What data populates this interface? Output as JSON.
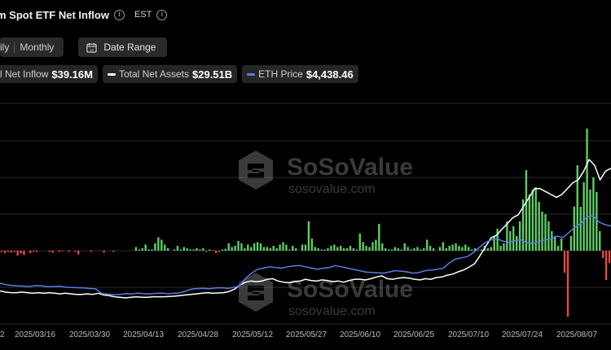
{
  "header": {
    "title": "m Spot ETF Net Inflow",
    "timezone": "EST"
  },
  "controls": {
    "period_partial": "ily",
    "period_monthly": "Monthly",
    "date_range_label": "Date Range"
  },
  "legend": {
    "inflow_label": "l Net Inflow",
    "inflow_value": "$39.16M",
    "assets_label": "Total Net Assets",
    "assets_value": "$29.51B",
    "price_label": "ETH Price",
    "price_value": "$4,438.46"
  },
  "watermark": {
    "brand": "SoSoValue",
    "domain": "sosovalue.com"
  },
  "colors": {
    "inflow_positive": "#5fd068",
    "inflow_negative": "#e8473f",
    "assets_line": "#ffffff",
    "price_line": "#5b7be6",
    "grid": "#2b2b2b"
  },
  "chart_data": {
    "type": "bar",
    "x_tick_labels": [
      "2",
      "2025/03/16",
      "2025/03/30",
      "2025/04/13",
      "2025/04/28",
      "2025/05/12",
      "2025/05/27",
      "2025/06/10",
      "2025/06/25",
      "2025/07/10",
      "2025/07/24",
      "2025/08/07"
    ],
    "grid": true,
    "series": [
      {
        "name": "Total Net Inflow",
        "kind": "bar",
        "values": [
          -0.05,
          -0.1,
          -0.05,
          -0.08,
          -0.05,
          -0.2,
          -0.12,
          -0.18,
          0,
          -0.1,
          -0.05,
          -0.05,
          0,
          0,
          0,
          -0.05,
          -0.08,
          0,
          -0.05,
          -0.03,
          0,
          -0.05,
          0,
          -0.05,
          -0.15,
          0,
          0,
          0,
          -0.05,
          0,
          0,
          0,
          -0.08,
          0,
          0,
          -0.05,
          0,
          0,
          0,
          0,
          0,
          0,
          0.15,
          0.05,
          0.1,
          0.25,
          0.05,
          0.05,
          0.3,
          0.55,
          0.45,
          0.25,
          0.1,
          0,
          0.05,
          0.2,
          0.05,
          0.15,
          0.1,
          0.05,
          0.05,
          0.1,
          0.05,
          0.1,
          -0.05,
          0.05,
          0.02,
          -0.1,
          -0.05,
          0.05,
          0.08,
          0.3,
          0.15,
          0.2,
          0.4,
          0.3,
          0.1,
          0.25,
          0.15,
          0.3,
          0.35,
          0.3,
          0.15,
          0.15,
          0.1,
          0.2,
          0.1,
          0.25,
          0.35,
          0.25,
          0.05,
          0.2,
          0.1,
          0,
          0.25,
          0.25,
          1.2,
          0.5,
          0.15,
          0.1,
          0.05,
          0.05,
          0.1,
          0.2,
          0.25,
          0.15,
          0.2,
          0.1,
          0.1,
          0.2,
          0.1,
          0.05,
          0.7,
          0.35,
          0.2,
          0.15,
          0.35,
          0.45,
          1.1,
          0.3,
          0.1,
          0.05,
          0.05,
          0.15,
          0.1,
          0.05,
          0.3,
          0.15,
          0.05,
          0.1,
          0.15,
          0.05,
          0.1,
          0.45,
          0.2,
          0.1,
          0,
          0.15,
          0.35,
          0.1,
          0.2,
          0.25,
          0.3,
          0.2,
          0.15,
          0.25,
          0.15,
          0.05,
          0.1,
          0.02,
          0.05,
          0.2,
          0.1,
          0.15,
          0.6,
          0.9,
          0.2,
          0.3,
          1.2,
          0.8,
          1.0,
          0.6,
          1.2,
          2.1,
          3.3,
          2.3,
          2.5,
          2.6,
          2.0,
          1.6,
          1.5,
          1.2,
          0.8,
          0.6,
          0.2,
          0.5,
          -0.9,
          -2.7,
          0.6,
          1.8,
          3.5,
          1.8,
          2.8,
          5.0,
          2.5,
          3.0,
          2.4,
          0.8,
          -0.3,
          -1.2,
          -0.5
        ]
      },
      {
        "name": "Total Net Assets",
        "kind": "line",
        "values": [
          7.9,
          7.7,
          7.6,
          7.6,
          7.7,
          7.6,
          7.5,
          7.6,
          7.5,
          7.6,
          7.5,
          7.4,
          7.5,
          7.4,
          7.3,
          7.3,
          7.4,
          7.3,
          7.5,
          7.2,
          7.1,
          6.9,
          6.8,
          6.7,
          6.8,
          6.9,
          6.8,
          6.8,
          6.9,
          6.9,
          6.9,
          6.95,
          7.0,
          7.1,
          7.2,
          7.3,
          7.4,
          7.5,
          7.6,
          7.5,
          7.55,
          7.6,
          7.8,
          8.2,
          8.9,
          9.4,
          9.6,
          9.5,
          9.6,
          9.9,
          10.0,
          9.6,
          9.4,
          9.3,
          9.5,
          9.6,
          9.9,
          9.7,
          9.6,
          9.8,
          9.7,
          9.5,
          9.6,
          9.4,
          9.7,
          9.9,
          9.9,
          9.8,
          10.0,
          10.3,
          10.5,
          10.0,
          9.9,
          10.1,
          10.2,
          10.1,
          9.9,
          9.8,
          10.0,
          9.9,
          10.2,
          10.3,
          10.6,
          10.8,
          11.2,
          11.5,
          12.0,
          12.6,
          14.0,
          15.5,
          17.0,
          17.5,
          18.5,
          19.5,
          20.5,
          21.0,
          22.5,
          24.0,
          25.5,
          25.5,
          25.0,
          24.5,
          24.0,
          24.5,
          25.5,
          26.5,
          27.0,
          28.5,
          30.5,
          29.5,
          27.0,
          28.5,
          29.0
        ]
      },
      {
        "name": "ETH Price",
        "kind": "line",
        "values": [
          2010,
          1950,
          1920,
          1900,
          1890,
          1880,
          1920,
          1900,
          1870,
          1880,
          1890,
          1850,
          1840,
          1830,
          1820,
          1800,
          1790,
          1600,
          1580,
          1560,
          1570,
          1600,
          1590,
          1620,
          1600,
          1590,
          1610,
          1620,
          1600,
          1610,
          1630,
          1700,
          1780,
          1800,
          1810,
          1790,
          1820,
          1830,
          1810,
          1840,
          1900,
          2200,
          2400,
          2550,
          2600,
          2650,
          2620,
          2600,
          2650,
          2680,
          2700,
          2650,
          2600,
          2550,
          2600,
          2620,
          2700,
          2650,
          2600,
          2550,
          2500,
          2450,
          2430,
          2420,
          2400,
          2450,
          2500,
          2480,
          2450,
          2400,
          2430,
          2500,
          2520,
          2550,
          2600,
          2800,
          2950,
          3000,
          3050,
          3200,
          3400,
          3600,
          3700,
          3750,
          3650,
          3600,
          3680,
          3700,
          3600,
          3550,
          3650,
          3700,
          3750,
          3850,
          3800,
          4000,
          4200,
          4350,
          4600,
          4650,
          4400,
          4300,
          4250
        ]
      }
    ]
  }
}
